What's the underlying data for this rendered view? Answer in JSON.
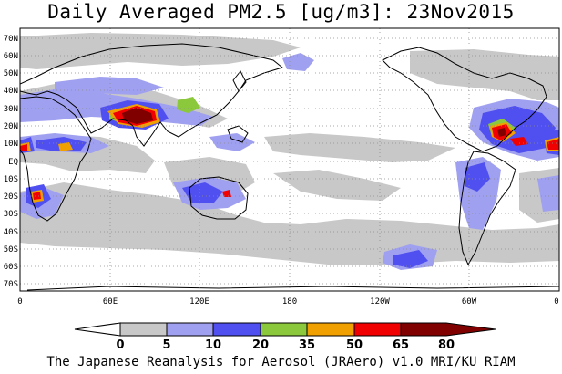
{
  "title": "Daily Averaged PM2.5 [ug/m3]: 23Nov2015",
  "footer": "The Japanese Reanalysis for Aerosol (JRAero) v1.0 MRI/KU_RIAM",
  "map": {
    "projection": "equirectangular",
    "lon_range": [
      0,
      360
    ],
    "lat_range": [
      -75,
      75
    ],
    "lat_ticks": [
      "70N",
      "60N",
      "50N",
      "40N",
      "30N",
      "20N",
      "10N",
      "EQ",
      "10S",
      "20S",
      "30S",
      "40S",
      "50S",
      "60S",
      "70S"
    ],
    "lon_ticks": [
      "0",
      "60E",
      "120E",
      "180",
      "120W",
      "60W",
      "0"
    ],
    "grid": "dotted"
  },
  "colorbar": {
    "levels": [
      "0",
      "5",
      "10",
      "20",
      "35",
      "50",
      "65",
      "80"
    ],
    "colors": [
      "#ffffff",
      "#c8c8c8",
      "#a0a0f0",
      "#5050f0",
      "#8cc83c",
      "#f0a000",
      "#f00000",
      "#800000"
    ]
  }
}
